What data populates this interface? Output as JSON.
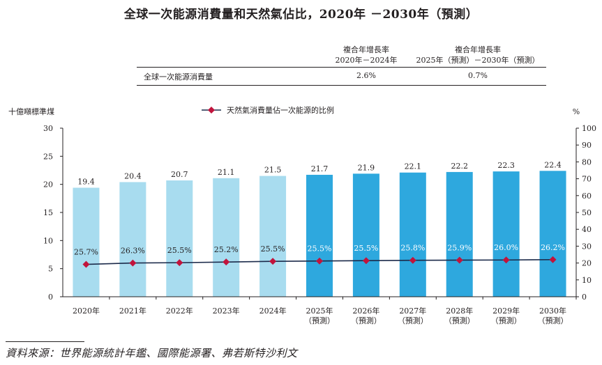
{
  "title": "全球一次能源消費量和天然氣佔比，2020年 －2030年（預測）",
  "summary_table": {
    "headers": [
      {
        "line1": "複合年增長率",
        "line2": "2020年－2024年"
      },
      {
        "line1": "複合年增長率",
        "line2": "2025年（預測）－2030年（預測）"
      }
    ],
    "row_label": "全球一次能源消費量",
    "values": [
      "2.6%",
      "0.7%"
    ]
  },
  "source": "資料來源：世界能源統計年鑑、國際能源署、弗若斯特沙利文",
  "colors": {
    "historical_bar": "#a8dcef",
    "forecast_bar": "#2ea8de",
    "line": "#1b2a4a",
    "marker": "#c1143c"
  },
  "chart_data": {
    "type": "bar",
    "title": "全球一次能源消費量和天然氣佔比，2020年 －2030年（預測）",
    "ylabel": "十億噸標準煤",
    "y2label": "%",
    "ylim": [
      0,
      30
    ],
    "y2lim": [
      0,
      100
    ],
    "yticks": [
      0,
      5,
      10,
      15,
      20,
      25,
      30
    ],
    "y2ticks": [
      0,
      10,
      20,
      30,
      40,
      50,
      60,
      70,
      80,
      90,
      100
    ],
    "categories": [
      {
        "year": "2020年",
        "note": ""
      },
      {
        "year": "2021年",
        "note": ""
      },
      {
        "year": "2022年",
        "note": ""
      },
      {
        "year": "2023年",
        "note": ""
      },
      {
        "year": "2024年",
        "note": ""
      },
      {
        "year": "2025年",
        "note": "（預測）"
      },
      {
        "year": "2026年",
        "note": "（預測）"
      },
      {
        "year": "2027年",
        "note": "（預測）"
      },
      {
        "year": "2028年",
        "note": "（預測）"
      },
      {
        "year": "2029年",
        "note": "（預測）"
      },
      {
        "year": "2030年",
        "note": "（預測）"
      }
    ],
    "forecast_start_index": 5,
    "series": [
      {
        "name": "全球一次能源消費量",
        "kind": "bar",
        "axis": "left",
        "values": [
          19.4,
          20.4,
          20.7,
          21.1,
          21.5,
          21.7,
          21.9,
          22.1,
          22.2,
          22.3,
          22.4
        ],
        "labels": [
          "19.4",
          "20.4",
          "20.7",
          "21.1",
          "21.5",
          "21.7",
          "21.9",
          "22.1",
          "22.2",
          "22.3",
          "22.4"
        ]
      },
      {
        "name": "天然氣消費量佔一次能源的比例",
        "kind": "line",
        "axis": "right",
        "values": [
          25.7,
          26.3,
          25.5,
          25.2,
          25.5,
          25.5,
          25.5,
          25.8,
          25.9,
          26.0,
          26.2
        ],
        "labels": [
          "25.7%",
          "26.3%",
          "25.5%",
          "25.2%",
          "25.5%",
          "25.5%",
          "25.5%",
          "25.8%",
          "25.9%",
          "26.0%",
          "26.2%"
        ],
        "plotted_values": [
          19.2,
          20.0,
          20.2,
          20.6,
          21.0,
          21.2,
          21.4,
          21.6,
          21.7,
          21.8,
          22.0
        ]
      }
    ],
    "legend": {
      "label": "天然氣消費量佔一次能源的比例",
      "position": "top-center"
    }
  }
}
